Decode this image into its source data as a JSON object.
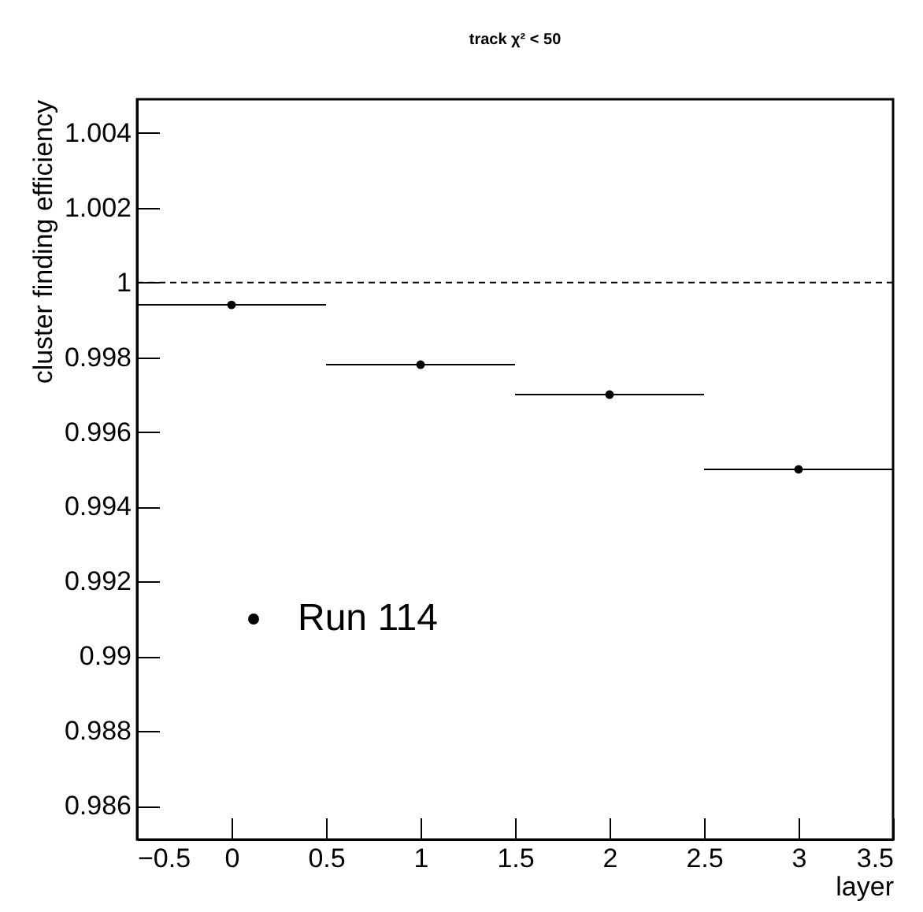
{
  "chart_data": {
    "type": "scatter",
    "title": "track χ² < 50",
    "xlabel": "layer",
    "ylabel": "cluster finding efficiency",
    "x": [
      0,
      1,
      2,
      3
    ],
    "series": [
      {
        "name": "Run 114",
        "color": "#000000",
        "values": [
          0.9994,
          0.9978,
          0.997,
          0.995
        ],
        "xerrors": [
          0.5,
          0.5,
          0.5,
          0.5
        ]
      }
    ],
    "xlim": [
      -0.5,
      3.5
    ],
    "xticks": [
      -0.5,
      0,
      0.5,
      1,
      1.5,
      2,
      2.5,
      3,
      3.5
    ],
    "ylim": [
      0.9851,
      1.0049
    ],
    "yticks": [
      0.986,
      0.988,
      0.99,
      0.992,
      0.994,
      0.996,
      0.998,
      1,
      1.002,
      1.004
    ],
    "ref_lines": [
      {
        "axis": "y",
        "value": 1,
        "line_style": "dashed",
        "color": "#000000"
      }
    ],
    "grid": false,
    "legend": "bottom left",
    "marker": "circle"
  }
}
